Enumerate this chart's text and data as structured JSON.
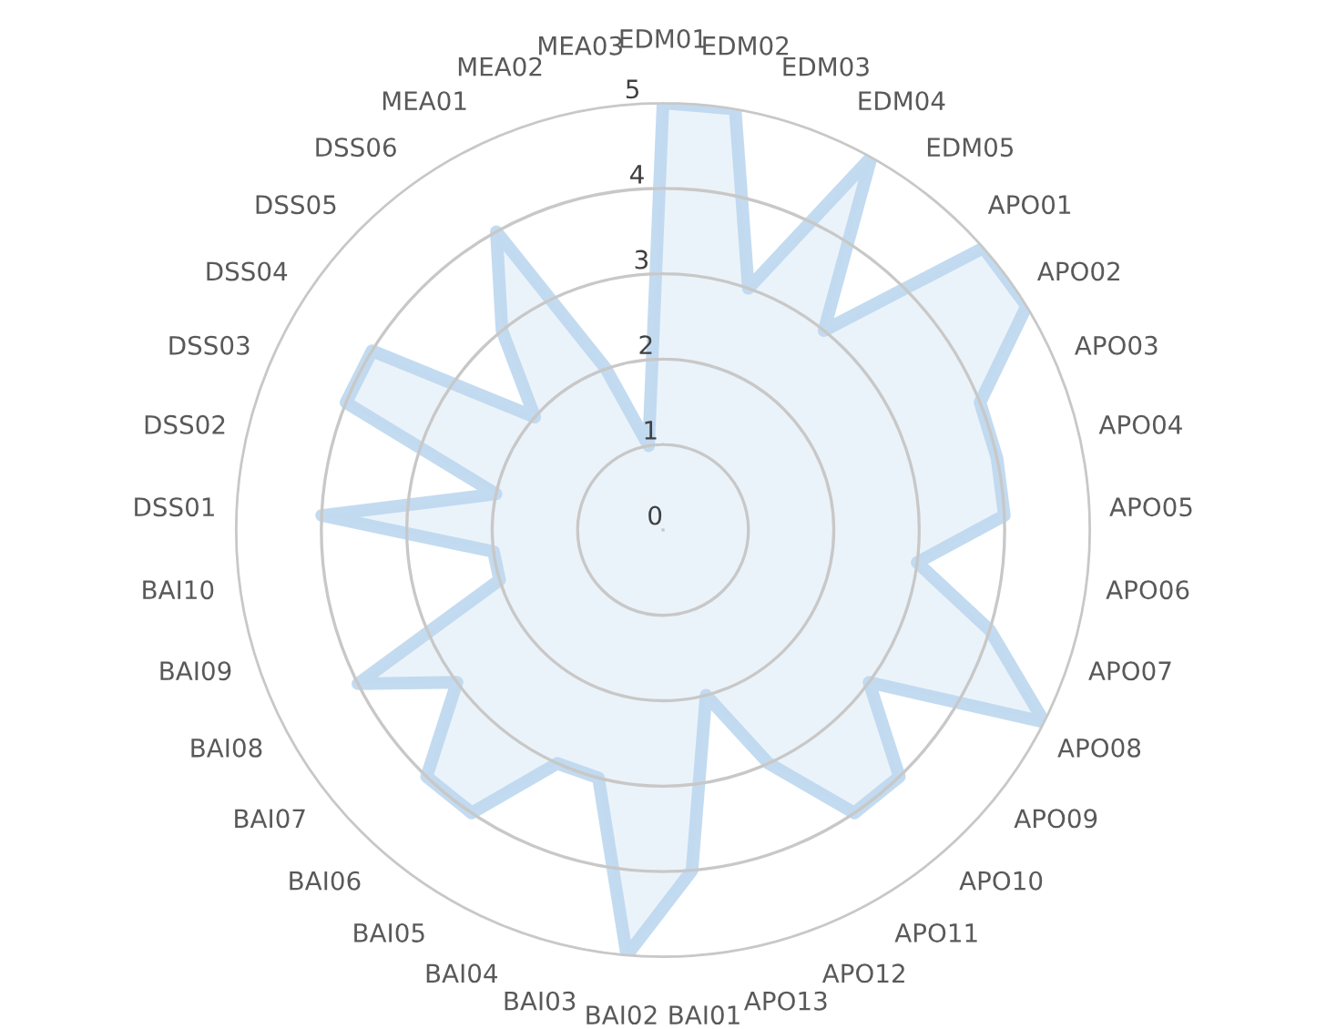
{
  "chart_data": {
    "type": "radar",
    "categories": [
      "EDM01",
      "EDM02",
      "EDM03",
      "EDM04",
      "EDM05",
      "APO01",
      "APO02",
      "APO03",
      "APO04",
      "APO05",
      "APO06",
      "APO07",
      "APO08",
      "APO09",
      "APO10",
      "APO11",
      "APO12",
      "APO13",
      "BAI01",
      "BAI02",
      "BAI03",
      "BAI04",
      "BAI05",
      "BAI06",
      "BAI07",
      "BAI08",
      "BAI09",
      "BAI10",
      "DSS01",
      "DSS02",
      "DSS03",
      "DSS04",
      "DSS05",
      "DSS06",
      "MEA01",
      "MEA02",
      "MEA03"
    ],
    "series": [
      {
        "color": "#bdd7ee",
        "values": [
          5,
          5,
          3,
          5,
          3,
          5,
          5,
          4,
          4,
          4,
          3,
          4,
          5,
          3,
          4,
          4,
          3,
          2,
          4,
          5,
          3,
          3,
          4,
          4,
          3,
          4,
          2,
          2,
          4,
          2,
          4,
          4,
          2,
          3,
          4,
          2,
          1
        ]
      }
    ],
    "ylim": [
      0,
      5
    ],
    "yticks": [
      0,
      1,
      2,
      3,
      4,
      5
    ],
    "grid": "y"
  }
}
